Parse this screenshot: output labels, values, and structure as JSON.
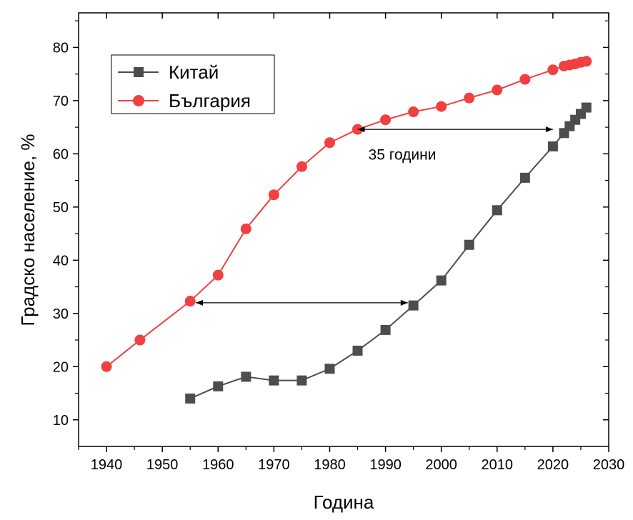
{
  "chart_data": {
    "type": "line",
    "title": "",
    "xlabel": "Година",
    "ylabel": "Градско население, %",
    "xlim": [
      1935,
      2030
    ],
    "ylim": [
      5,
      86.5
    ],
    "xticks": [
      1940,
      1950,
      1960,
      1970,
      1980,
      1990,
      2000,
      2010,
      2020,
      2030
    ],
    "yticks": [
      10,
      20,
      30,
      40,
      50,
      60,
      70,
      80
    ],
    "grid": false,
    "legend_position": "top-left",
    "series": [
      {
        "name": "Китай",
        "color": "#4d4d4d",
        "marker": "square",
        "x": [
          1955,
          1960,
          1965,
          1970,
          1975,
          1980,
          1985,
          1990,
          1995,
          2000,
          2005,
          2010,
          2015,
          2020,
          2022,
          2023,
          2024,
          2025,
          2026
        ],
        "y": [
          14.0,
          16.3,
          18.1,
          17.4,
          17.4,
          19.6,
          23.0,
          26.9,
          31.5,
          36.2,
          42.9,
          49.4,
          55.5,
          61.4,
          63.9,
          65.2,
          66.4,
          67.5,
          68.7
        ]
      },
      {
        "name": "България",
        "color": "#f04040",
        "marker": "circle",
        "x": [
          1940,
          1946,
          1955,
          1960,
          1965,
          1970,
          1975,
          1980,
          1985,
          1990,
          1995,
          2000,
          2005,
          2010,
          2015,
          2020,
          2022,
          2023,
          2024,
          2025,
          2026
        ],
        "y": [
          20.0,
          25.0,
          32.3,
          37.2,
          45.9,
          52.3,
          57.6,
          62.1,
          64.6,
          66.4,
          67.9,
          68.9,
          70.5,
          72.0,
          74.0,
          75.8,
          76.5,
          76.7,
          76.9,
          77.2,
          77.4
        ]
      }
    ],
    "annotations": [
      {
        "type": "double-arrow",
        "x": [
          1985,
          2020
        ],
        "y": 64.6,
        "label": "35 години",
        "label_x": 1993,
        "label_y": 60
      },
      {
        "type": "double-arrow",
        "x": [
          1956,
          1994
        ],
        "y": 32.0
      }
    ]
  }
}
